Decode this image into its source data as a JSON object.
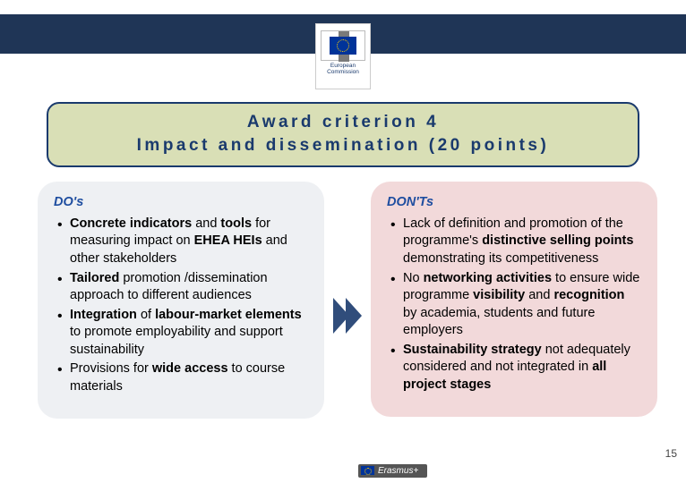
{
  "colors": {
    "navy": "#1f3556",
    "title_border": "#1a3a6d",
    "title_bg": "#d9dfb6",
    "dos_bg": "#eef0f3",
    "donts_bg": "#f2d9da",
    "heading_blue": "#1f4ea0",
    "erasmus_bg": "#555555",
    "erasmus_text": "#ffffff"
  },
  "logo": {
    "caption": "European\nCommission"
  },
  "title": {
    "line1": "Award criterion 4",
    "line2": "Impact and dissemination (20 points)"
  },
  "dos": {
    "heading": "DO's",
    "items": [
      "<b>Concrete indicators</b> and <b>tools</b> for measuring impact on <b>EHEA HEIs</b> and other stakeholders",
      "<b>Tailored</b> promotion /dissemination approach to different audiences",
      "<b>Integration</b> of <b>labour-market elements</b> to promote employability and support sustainability",
      "Provisions for <b>wide access</b> to course materials"
    ]
  },
  "donts": {
    "heading": "DON'Ts",
    "items": [
      "Lack of definition and promotion of the programme's <b>distinctive selling points</b> demonstrating its competitiveness",
      "No <b>networking activities</b> to ensure wide programme <b>visibility</b> and <b>recognition</b> by academia, students and future employers",
      "<b>Sustainability strategy</b> not adequately considered and not integrated in <b>all project stages</b>"
    ]
  },
  "erasmus_label": "Erasmus+",
  "page_number": "15"
}
